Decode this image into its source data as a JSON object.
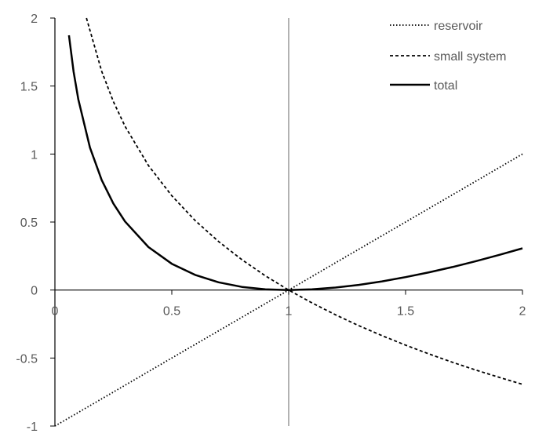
{
  "chart_data": {
    "type": "line",
    "title": "",
    "xlabel": "",
    "ylabel": "",
    "xlim": [
      0,
      2
    ],
    "ylim": [
      -1,
      2
    ],
    "x_ticks": [
      "0",
      "0.5",
      "1",
      "1.5",
      "2"
    ],
    "y_ticks": [
      "2",
      "1.5",
      "1",
      "0.5",
      "0",
      "-0.5",
      "-1"
    ],
    "x_tick_values": [
      0,
      0.5,
      1,
      1.5,
      2
    ],
    "y_tick_values": [
      2,
      1.5,
      1,
      0.5,
      0,
      -0.5,
      -1
    ],
    "grid": false,
    "legend_position": "top-right",
    "reference_line": {
      "x": 1
    },
    "series": [
      {
        "name": "reservoir",
        "style": "dotted",
        "color": "#000000",
        "x": [
          0,
          0.25,
          0.5,
          0.75,
          1,
          1.25,
          1.5,
          1.75,
          2
        ],
        "y": [
          -1,
          -0.75,
          -0.5,
          -0.25,
          0,
          0.25,
          0.5,
          0.75,
          1
        ]
      },
      {
        "name": "small system",
        "style": "dashed",
        "color": "#000000",
        "x": [
          0.135,
          0.2,
          0.25,
          0.3,
          0.4,
          0.5,
          0.6,
          0.7,
          0.8,
          0.9,
          1,
          1.1,
          1.2,
          1.3,
          1.4,
          1.5,
          1.6,
          1.7,
          1.8,
          1.9,
          2
        ],
        "y": [
          2.0,
          1.609,
          1.386,
          1.204,
          0.916,
          0.693,
          0.511,
          0.357,
          0.223,
          0.105,
          0,
          -0.095,
          -0.182,
          -0.262,
          -0.336,
          -0.405,
          -0.47,
          -0.531,
          -0.588,
          -0.642,
          -0.693
        ]
      },
      {
        "name": "total",
        "style": "solid",
        "color": "#000000",
        "x": [
          0.06,
          0.08,
          0.1,
          0.15,
          0.2,
          0.25,
          0.3,
          0.4,
          0.5,
          0.6,
          0.7,
          0.8,
          0.9,
          1,
          1.1,
          1.2,
          1.3,
          1.4,
          1.5,
          1.6,
          1.7,
          1.8,
          1.9,
          2
        ],
        "y": [
          1.873,
          1.606,
          1.403,
          1.047,
          0.809,
          0.636,
          0.504,
          0.316,
          0.193,
          0.111,
          0.057,
          0.023,
          0.005,
          0,
          0.005,
          0.018,
          0.038,
          0.064,
          0.095,
          0.13,
          0.169,
          0.212,
          0.258,
          0.307
        ]
      }
    ]
  }
}
